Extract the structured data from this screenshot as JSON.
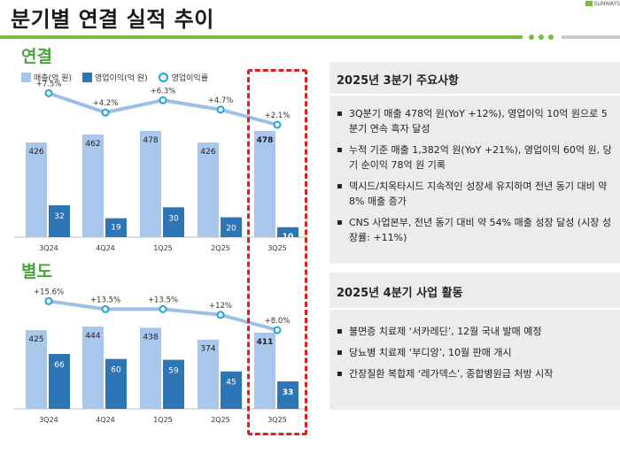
{
  "page": {
    "title": "분기별 연결 실적 추이",
    "logo_text": "SUNWAYS"
  },
  "legend": {
    "revenue": "매출(억 원)",
    "op_income": "영업이익(억 원)",
    "margin": "영업이익률"
  },
  "colors": {
    "revenue": "#a9c7ea",
    "op_income": "#2e75b6",
    "margin": "#1fa3dc",
    "accent": "#7dbb42",
    "section": "#4aa33b"
  },
  "consolidated": {
    "label": "연결"
  },
  "separate": {
    "label": "별도"
  },
  "chart_data": [
    {
      "type": "bar",
      "title": "연결",
      "categories": [
        "3Q24",
        "4Q24",
        "1Q25",
        "2Q25",
        "3Q25"
      ],
      "series": [
        {
          "name": "매출(억 원)",
          "values": [
            426,
            462,
            478,
            426,
            478
          ]
        },
        {
          "name": "영업이익(억 원)",
          "values": [
            32,
            19,
            30,
            20,
            10
          ]
        },
        {
          "name": "영업이익률",
          "type": "line",
          "values": [
            7.5,
            4.2,
            6.3,
            4.7,
            2.1
          ],
          "labels": [
            "+7.5%",
            "+4.2%",
            "+6.3%",
            "+4.7%",
            "+2.1%"
          ]
        }
      ]
    },
    {
      "type": "bar",
      "title": "별도",
      "categories": [
        "3Q24",
        "4Q24",
        "1Q25",
        "2Q25",
        "3Q25"
      ],
      "series": [
        {
          "name": "매출(억 원)",
          "values": [
            425,
            444,
            438,
            374,
            411
          ]
        },
        {
          "name": "영업이익(억 원)",
          "values": [
            66,
            60,
            59,
            45,
            33
          ]
        },
        {
          "name": "영업이익률",
          "type": "line",
          "values": [
            15.6,
            13.5,
            13.5,
            12,
            8.0
          ],
          "labels": [
            "+15.6%",
            "+13.5%",
            "+13.5%",
            "+12%",
            "+8.0%"
          ]
        }
      ]
    }
  ],
  "panel1": {
    "heading": "2025년 3분기 주요사항",
    "bullets": [
      "3Q분기 매출 478억 원(YoY +12%), 영업이익 10억 원으로 5분기 연속 흑자 달성",
      "누적 기준 매출 1,382억 원(YoY +21%), 영업이익 60억 원, 당기 순이익 78억 원 기록",
      "덱시드/치옥타시드 지속적인 성장세 유지하며 전년 동기 대비 약 8% 매출 증가",
      "CNS 사업본부, 전년 동기 대비 약 54% 매출 성장 달성 (시장 성장률: +11%)"
    ]
  },
  "panel2": {
    "heading": "2025년 4분기 사업 활동",
    "bullets": [
      "불면증 치료제 ‘서카레딘’, 12월 국내 발매 예정",
      "당뇨병 치료제 ‘부디앙’, 10월 판매 개시",
      "간장질환 복합제 ‘레가덱스’, 종합병원급 처방 시작"
    ]
  }
}
